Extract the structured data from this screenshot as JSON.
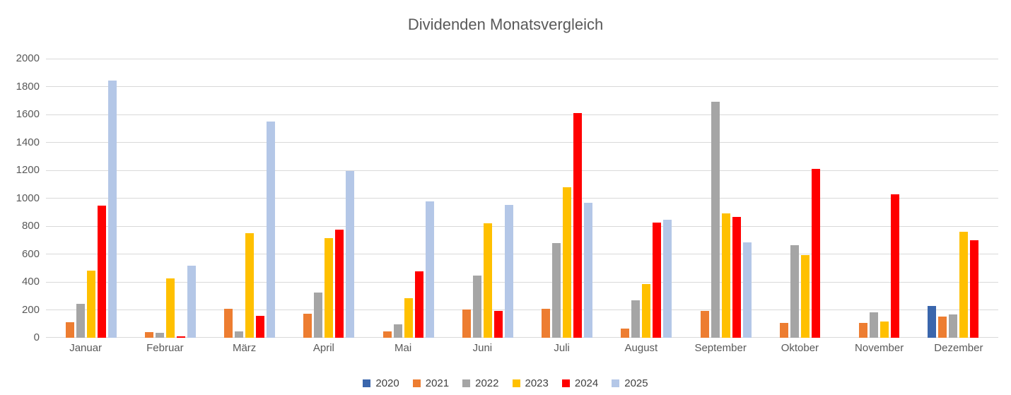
{
  "chart_data": {
    "type": "bar",
    "title": "Dividenden Monatsvergleich",
    "categories": [
      "Januar",
      "Februar",
      "März",
      "April",
      "Mai",
      "Juni",
      "Juli",
      "August",
      "September",
      "Oktober",
      "November",
      "Dezember"
    ],
    "series": [
      {
        "name": "2020",
        "color": "#3A66AC",
        "values": [
          0,
          0,
          0,
          0,
          0,
          0,
          0,
          0,
          0,
          0,
          0,
          230
        ]
      },
      {
        "name": "2021",
        "color": "#ED7D31",
        "values": [
          110,
          40,
          210,
          170,
          45,
          205,
          210,
          65,
          195,
          105,
          105,
          150
        ]
      },
      {
        "name": "2022",
        "color": "#A5A5A5",
        "values": [
          245,
          35,
          45,
          325,
          95,
          445,
          680,
          270,
          1690,
          665,
          180,
          165
        ]
      },
      {
        "name": "2023",
        "color": "#FFC000",
        "values": [
          480,
          425,
          750,
          715,
          285,
          820,
          1080,
          385,
          890,
          590,
          115,
          760
        ]
      },
      {
        "name": "2024",
        "color": "#FF0000",
        "values": [
          945,
          10,
          155,
          775,
          475,
          195,
          1610,
          825,
          865,
          1210,
          1030,
          700
        ]
      },
      {
        "name": "2025",
        "color": "#B4C7E7",
        "values": [
          1845,
          515,
          1550,
          1195,
          975,
          950,
          965,
          845,
          685,
          0,
          0,
          0
        ]
      }
    ],
    "ylim": [
      0,
      2000
    ],
    "ytick_step": 200,
    "ytick_labels": [
      "0",
      "200",
      "400",
      "600",
      "800",
      "1000",
      "1200",
      "1400",
      "1600",
      "1800",
      "2000"
    ],
    "grid": true,
    "legend_position": "bottom",
    "xlabel": "",
    "ylabel": ""
  },
  "style": {
    "gridline_color": "#d9d9d9",
    "axis_text_color": "#595959",
    "title_color": "#595959",
    "legend_text_color": "#404040"
  }
}
